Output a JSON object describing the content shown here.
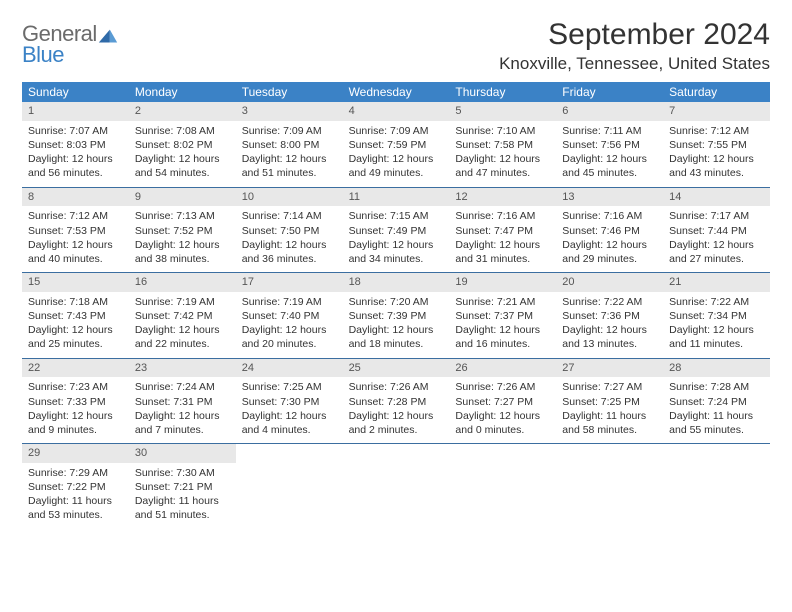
{
  "logo": {
    "general": "General",
    "blue": "Blue"
  },
  "title": "September 2024",
  "location": "Knoxville, Tennessee, United States",
  "colors": {
    "header_bg": "#3b82c6",
    "header_text": "#ffffff",
    "daynum_bg": "#e8e8e8",
    "week_divider": "#3b6ea0",
    "text": "#333333",
    "logo_gray": "#6b6b6b",
    "logo_blue": "#3b82c6"
  },
  "day_names": [
    "Sunday",
    "Monday",
    "Tuesday",
    "Wednesday",
    "Thursday",
    "Friday",
    "Saturday"
  ],
  "weeks": [
    [
      {
        "d": "1",
        "sr": "7:07 AM",
        "ss": "8:03 PM",
        "dl": "12 hours and 56 minutes."
      },
      {
        "d": "2",
        "sr": "7:08 AM",
        "ss": "8:02 PM",
        "dl": "12 hours and 54 minutes."
      },
      {
        "d": "3",
        "sr": "7:09 AM",
        "ss": "8:00 PM",
        "dl": "12 hours and 51 minutes."
      },
      {
        "d": "4",
        "sr": "7:09 AM",
        "ss": "7:59 PM",
        "dl": "12 hours and 49 minutes."
      },
      {
        "d": "5",
        "sr": "7:10 AM",
        "ss": "7:58 PM",
        "dl": "12 hours and 47 minutes."
      },
      {
        "d": "6",
        "sr": "7:11 AM",
        "ss": "7:56 PM",
        "dl": "12 hours and 45 minutes."
      },
      {
        "d": "7",
        "sr": "7:12 AM",
        "ss": "7:55 PM",
        "dl": "12 hours and 43 minutes."
      }
    ],
    [
      {
        "d": "8",
        "sr": "7:12 AM",
        "ss": "7:53 PM",
        "dl": "12 hours and 40 minutes."
      },
      {
        "d": "9",
        "sr": "7:13 AM",
        "ss": "7:52 PM",
        "dl": "12 hours and 38 minutes."
      },
      {
        "d": "10",
        "sr": "7:14 AM",
        "ss": "7:50 PM",
        "dl": "12 hours and 36 minutes."
      },
      {
        "d": "11",
        "sr": "7:15 AM",
        "ss": "7:49 PM",
        "dl": "12 hours and 34 minutes."
      },
      {
        "d": "12",
        "sr": "7:16 AM",
        "ss": "7:47 PM",
        "dl": "12 hours and 31 minutes."
      },
      {
        "d": "13",
        "sr": "7:16 AM",
        "ss": "7:46 PM",
        "dl": "12 hours and 29 minutes."
      },
      {
        "d": "14",
        "sr": "7:17 AM",
        "ss": "7:44 PM",
        "dl": "12 hours and 27 minutes."
      }
    ],
    [
      {
        "d": "15",
        "sr": "7:18 AM",
        "ss": "7:43 PM",
        "dl": "12 hours and 25 minutes."
      },
      {
        "d": "16",
        "sr": "7:19 AM",
        "ss": "7:42 PM",
        "dl": "12 hours and 22 minutes."
      },
      {
        "d": "17",
        "sr": "7:19 AM",
        "ss": "7:40 PM",
        "dl": "12 hours and 20 minutes."
      },
      {
        "d": "18",
        "sr": "7:20 AM",
        "ss": "7:39 PM",
        "dl": "12 hours and 18 minutes."
      },
      {
        "d": "19",
        "sr": "7:21 AM",
        "ss": "7:37 PM",
        "dl": "12 hours and 16 minutes."
      },
      {
        "d": "20",
        "sr": "7:22 AM",
        "ss": "7:36 PM",
        "dl": "12 hours and 13 minutes."
      },
      {
        "d": "21",
        "sr": "7:22 AM",
        "ss": "7:34 PM",
        "dl": "12 hours and 11 minutes."
      }
    ],
    [
      {
        "d": "22",
        "sr": "7:23 AM",
        "ss": "7:33 PM",
        "dl": "12 hours and 9 minutes."
      },
      {
        "d": "23",
        "sr": "7:24 AM",
        "ss": "7:31 PM",
        "dl": "12 hours and 7 minutes."
      },
      {
        "d": "24",
        "sr": "7:25 AM",
        "ss": "7:30 PM",
        "dl": "12 hours and 4 minutes."
      },
      {
        "d": "25",
        "sr": "7:26 AM",
        "ss": "7:28 PM",
        "dl": "12 hours and 2 minutes."
      },
      {
        "d": "26",
        "sr": "7:26 AM",
        "ss": "7:27 PM",
        "dl": "12 hours and 0 minutes."
      },
      {
        "d": "27",
        "sr": "7:27 AM",
        "ss": "7:25 PM",
        "dl": "11 hours and 58 minutes."
      },
      {
        "d": "28",
        "sr": "7:28 AM",
        "ss": "7:24 PM",
        "dl": "11 hours and 55 minutes."
      }
    ],
    [
      {
        "d": "29",
        "sr": "7:29 AM",
        "ss": "7:22 PM",
        "dl": "11 hours and 53 minutes."
      },
      {
        "d": "30",
        "sr": "7:30 AM",
        "ss": "7:21 PM",
        "dl": "11 hours and 51 minutes."
      },
      null,
      null,
      null,
      null,
      null
    ]
  ],
  "labels": {
    "sunrise": "Sunrise: ",
    "sunset": "Sunset: ",
    "daylight": "Daylight: "
  }
}
